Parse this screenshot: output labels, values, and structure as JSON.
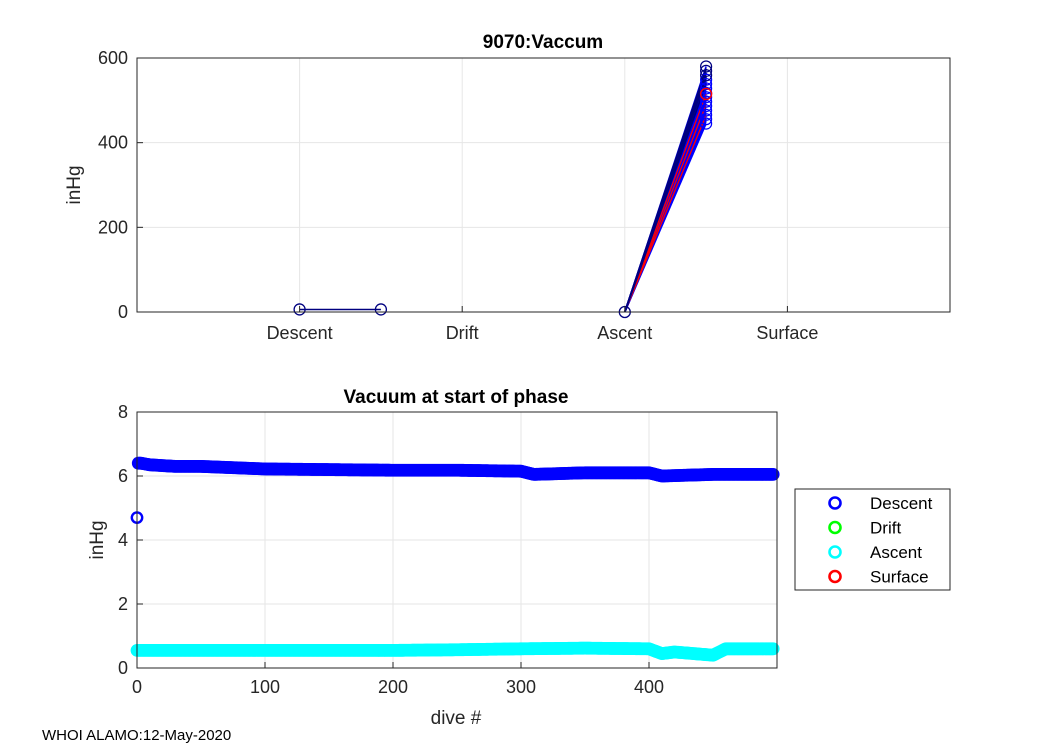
{
  "footer": "WHOI ALAMO:12-May-2020",
  "colors": {
    "descent": "#0000ff",
    "drift": "#00ff00",
    "ascent": "#00ffff",
    "surface": "#ff0000",
    "navy": "#000080",
    "axis": "#262626",
    "grid": "#e6e6e6"
  },
  "chart_data": [
    {
      "type": "line",
      "title": "9070:Vaccum",
      "xlabel": "",
      "ylabel": "inHg",
      "categories": [
        "Descent",
        "Drift",
        "Ascent",
        "Surface"
      ],
      "xlim": [
        0,
        5
      ],
      "ylim": [
        0,
        600
      ],
      "yticks": [
        0,
        200,
        400,
        600
      ],
      "grid": true,
      "series": [
        {
          "name": "descent-segment",
          "x": [
            1,
            1.5
          ],
          "y": [
            6,
            6
          ]
        },
        {
          "name": "ascent-to-surface",
          "x": [
            3,
            3.5
          ],
          "y_start": 0,
          "y_end_range": [
            445,
            580
          ]
        }
      ]
    },
    {
      "type": "scatter",
      "title": "Vacuum at start of phase",
      "xlabel": "dive #",
      "ylabel": "inHg",
      "xlim": [
        0,
        500
      ],
      "ylim": [
        0,
        8
      ],
      "xticks": [
        0,
        100,
        200,
        300,
        400
      ],
      "yticks": [
        0,
        2,
        4,
        6,
        8
      ],
      "grid": true,
      "legend": {
        "position": "right-outside",
        "entries": [
          "Descent",
          "Drift",
          "Ascent",
          "Surface"
        ]
      },
      "series": [
        {
          "name": "Descent",
          "x": [
            0,
            1,
            3,
            10,
            30,
            50,
            100,
            150,
            200,
            250,
            300,
            310,
            350,
            400,
            410,
            450,
            490,
            497
          ],
          "y": [
            4.7,
            6.4,
            6.4,
            6.35,
            6.3,
            6.3,
            6.22,
            6.2,
            6.18,
            6.18,
            6.15,
            6.05,
            6.1,
            6.1,
            6.0,
            6.05,
            6.05,
            6.05
          ]
        },
        {
          "name": "Drift",
          "x": [],
          "y": []
        },
        {
          "name": "Ascent",
          "x": [
            0,
            50,
            100,
            150,
            200,
            250,
            300,
            350,
            400,
            410,
            420,
            450,
            460,
            497
          ],
          "y": [
            0.55,
            0.55,
            0.55,
            0.55,
            0.55,
            0.57,
            0.6,
            0.62,
            0.6,
            0.45,
            0.5,
            0.4,
            0.6,
            0.6
          ]
        },
        {
          "name": "Surface",
          "x": [],
          "y": []
        }
      ]
    }
  ]
}
